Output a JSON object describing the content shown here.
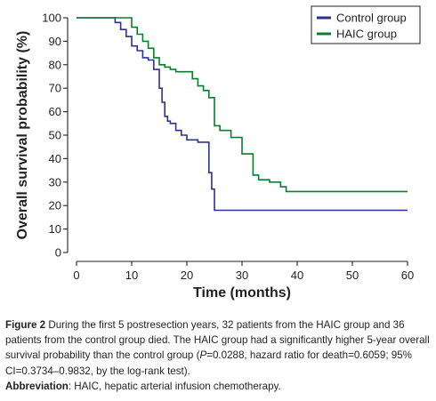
{
  "chart_data": {
    "type": "line",
    "step": true,
    "xlabel": "Time (months)",
    "ylabel": "Overall survival probability (%)",
    "xlim": [
      0,
      60
    ],
    "ylim": [
      0,
      100
    ],
    "xticks": [
      0,
      10,
      20,
      30,
      40,
      50,
      60
    ],
    "yticks": [
      0,
      10,
      20,
      30,
      40,
      50,
      60,
      70,
      80,
      90,
      100
    ],
    "grid": false,
    "legend_position": "top-right",
    "series": [
      {
        "name": "Control group",
        "color": "#2e3192",
        "x": [
          0,
          7,
          8,
          9,
          10,
          11,
          12,
          13,
          14,
          15,
          15.5,
          16,
          16.5,
          17,
          18,
          19,
          20,
          21,
          22,
          24,
          24.5,
          25,
          60
        ],
        "y": [
          100,
          98,
          95,
          92,
          88,
          86,
          83,
          82,
          78,
          70,
          64,
          58,
          56,
          55,
          52,
          50,
          48,
          48,
          47,
          34,
          27,
          18,
          18
        ]
      },
      {
        "name": "HAIC group",
        "color": "#0d7c2c",
        "x": [
          0,
          10,
          11,
          12,
          13,
          14,
          15,
          16,
          17,
          18,
          19,
          20,
          21,
          22,
          23,
          24,
          25,
          26,
          27,
          28,
          30,
          31,
          32,
          33,
          35,
          37,
          38,
          60
        ],
        "y": [
          100,
          96,
          93,
          90,
          87,
          83,
          80,
          79,
          78,
          77,
          77,
          77,
          74,
          71,
          69,
          66,
          54,
          52,
          52,
          49,
          42,
          42,
          33,
          31,
          30,
          28,
          26,
          26
        ]
      }
    ]
  },
  "caption": {
    "figure_label": "Figure 2",
    "text_1": " During the first 5 postresection years, 32 patients from the HAIC group and 36 patients from the control group died. The HAIC group had a significantly higher 5-year overall survival probability than the control group (",
    "p_italic": "P",
    "text_2": "=0.0288, hazard ratio for death=0.6059; 95% CI=0.3734–0.9832, by the log-rank test).",
    "abbrev_label": "Abbreviation",
    "abbrev_text": ": HAIC, hepatic arterial infusion chemotherapy."
  }
}
